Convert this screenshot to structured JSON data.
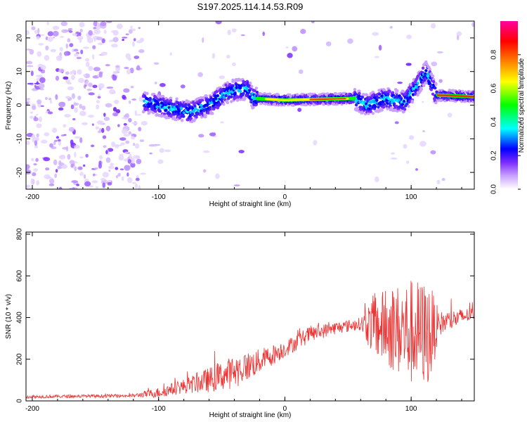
{
  "title": "S197.2025.114.14.53.R09",
  "chart_data": [
    {
      "type": "heatmap",
      "xlabel": "Height of straight line (km)",
      "ylabel": "Frequency (Hz)",
      "xlim": [
        -205,
        150
      ],
      "ylim": [
        -25,
        25
      ],
      "xticks": [
        -200,
        -100,
        0,
        100
      ],
      "yticks": [
        -20,
        -10,
        0,
        10,
        20
      ],
      "colorbar": {
        "label": "Normalized spectral amplitude",
        "range": [
          0,
          1
        ],
        "ticks": [
          0.0,
          0.2,
          0.4,
          0.6,
          0.8
        ],
        "tick_labels": [
          "0.0",
          "0.2",
          "0.4",
          "0.6",
          "0.8"
        ],
        "colors": [
          "#ffffff",
          "#c9a0ff",
          "#7b2bff",
          "#0000ff",
          "#00ffff",
          "#00ff00",
          "#ffff00",
          "#ff8000",
          "#ff0000",
          "#ff00a0"
        ]
      },
      "ridge": [
        {
          "x": -110,
          "y": 1
        },
        {
          "x": -90,
          "y": -1
        },
        {
          "x": -75,
          "y": -2
        },
        {
          "x": -60,
          "y": 0
        },
        {
          "x": -45,
          "y": 4
        },
        {
          "x": -30,
          "y": 5
        },
        {
          "x": -25,
          "y": 2
        },
        {
          "x": 0,
          "y": 1.5
        },
        {
          "x": 55,
          "y": 2
        },
        {
          "x": 65,
          "y": 0
        },
        {
          "x": 80,
          "y": 2
        },
        {
          "x": 95,
          "y": 1
        },
        {
          "x": 105,
          "y": 6
        },
        {
          "x": 112,
          "y": 10
        },
        {
          "x": 120,
          "y": 3
        },
        {
          "x": 150,
          "y": 2.5
        }
      ]
    },
    {
      "type": "line",
      "xlabel": "Height of straight line (km)",
      "ylabel": "SNR (10 * v/v)",
      "xlim": [
        -205,
        150
      ],
      "ylim": [
        0,
        810
      ],
      "xticks": [
        -200,
        -100,
        0,
        100
      ],
      "yticks": [
        0,
        200,
        400,
        600,
        800
      ],
      "series": [
        {
          "color": "#ee3333",
          "envelope": [
            {
              "x": -205,
              "base": 20,
              "amp": 8
            },
            {
              "x": -120,
              "base": 25,
              "amp": 8
            },
            {
              "x": -100,
              "base": 40,
              "amp": 25
            },
            {
              "x": -80,
              "base": 70,
              "amp": 35
            },
            {
              "x": -60,
              "base": 100,
              "amp": 60
            },
            {
              "x": -40,
              "base": 140,
              "amp": 80
            },
            {
              "x": -20,
              "base": 190,
              "amp": 60
            },
            {
              "x": 0,
              "base": 250,
              "amp": 40
            },
            {
              "x": 20,
              "base": 320,
              "amp": 40
            },
            {
              "x": 40,
              "base": 350,
              "amp": 30
            },
            {
              "x": 60,
              "base": 370,
              "amp": 30
            },
            {
              "x": 70,
              "base": 360,
              "amp": 150
            },
            {
              "x": 100,
              "base": 330,
              "amp": 260
            },
            {
              "x": 115,
              "base": 320,
              "amp": 250
            },
            {
              "x": 122,
              "base": 370,
              "amp": 60
            },
            {
              "x": 150,
              "base": 420,
              "amp": 30
            }
          ]
        }
      ]
    }
  ]
}
